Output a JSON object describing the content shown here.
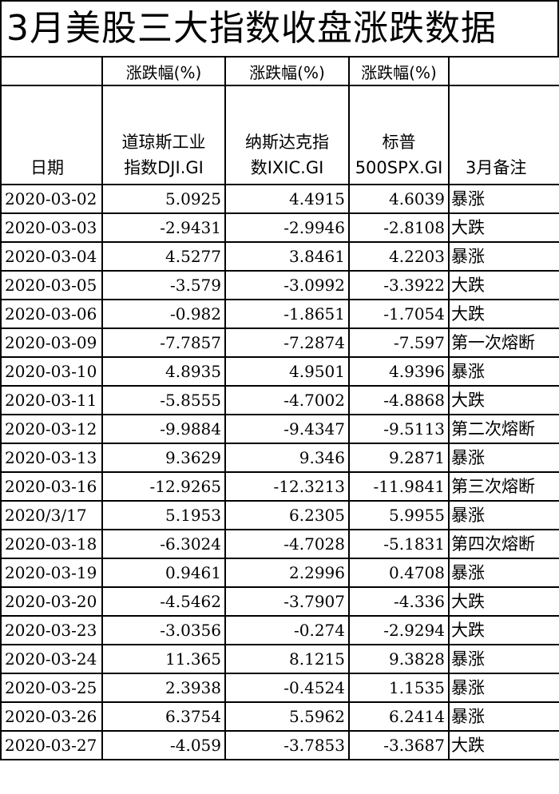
{
  "title": "3月美股三大指数收盘涨跌数据",
  "header": {
    "change_label": "涨跌幅(%)",
    "date": "日期",
    "dji": [
      "道琼斯工业",
      "指数DJI.GI"
    ],
    "ixic": [
      "纳斯达克指",
      "数IXIC.GI"
    ],
    "spx": [
      "标普",
      "500SPX.GI"
    ],
    "note": "3月备注"
  },
  "rows": [
    {
      "date": "2020-03-02",
      "dji": "5.0925",
      "ixic": "4.4915",
      "spx": "4.6039",
      "note": "暴涨"
    },
    {
      "date": "2020-03-03",
      "dji": "-2.9431",
      "ixic": "-2.9946",
      "spx": "-2.8108",
      "note": "大跌"
    },
    {
      "date": "2020-03-04",
      "dji": "4.5277",
      "ixic": "3.8461",
      "spx": "4.2203",
      "note": "暴涨"
    },
    {
      "date": "2020-03-05",
      "dji": "-3.579",
      "ixic": "-3.0992",
      "spx": "-3.3922",
      "note": "大跌"
    },
    {
      "date": "2020-03-06",
      "dji": "-0.982",
      "ixic": "-1.8651",
      "spx": "-1.7054",
      "note": "大跌"
    },
    {
      "date": "2020-03-09",
      "dji": "-7.7857",
      "ixic": "-7.2874",
      "spx": "-7.597",
      "note": "第一次熔断"
    },
    {
      "date": "2020-03-10",
      "dji": "4.8935",
      "ixic": "4.9501",
      "spx": "4.9396",
      "note": "暴涨"
    },
    {
      "date": "2020-03-11",
      "dji": "-5.8555",
      "ixic": "-4.7002",
      "spx": "-4.8868",
      "note": "大跌"
    },
    {
      "date": "2020-03-12",
      "dji": "-9.9884",
      "ixic": "-9.4347",
      "spx": "-9.5113",
      "note": "第二次熔断"
    },
    {
      "date": "2020-03-13",
      "dji": "9.3629",
      "ixic": "9.346",
      "spx": "9.2871",
      "note": "暴涨"
    },
    {
      "date": "2020-03-16",
      "dji": "-12.9265",
      "ixic": "-12.3213",
      "spx": "-11.9841",
      "note": "第三次熔断"
    },
    {
      "date": "2020/3/17",
      "dji": "5.1953",
      "ixic": "6.2305",
      "spx": "5.9955",
      "note": "暴涨"
    },
    {
      "date": "2020-03-18",
      "dji": "-6.3024",
      "ixic": "-4.7028",
      "spx": "-5.1831",
      "note": "第四次熔断"
    },
    {
      "date": "2020-03-19",
      "dji": "0.9461",
      "ixic": "2.2996",
      "spx": "0.4708",
      "note": "暴涨"
    },
    {
      "date": "2020-03-20",
      "dji": "-4.5462",
      "ixic": "-3.7907",
      "spx": "-4.336",
      "note": "大跌"
    },
    {
      "date": "2020-03-23",
      "dji": "-3.0356",
      "ixic": "-0.274",
      "spx": "-2.9294",
      "note": "大跌"
    },
    {
      "date": "2020-03-24",
      "dji": "11.365",
      "ixic": "8.1215",
      "spx": "9.3828",
      "note": "暴涨"
    },
    {
      "date": "2020-03-25",
      "dji": "2.3938",
      "ixic": "-0.4524",
      "spx": "1.1535",
      "note": "暴涨"
    },
    {
      "date": "2020-03-26",
      "dji": "6.3754",
      "ixic": "5.5962",
      "spx": "6.2414",
      "note": "暴涨"
    },
    {
      "date": "2020-03-27",
      "dji": "-4.059",
      "ixic": "-3.7853",
      "spx": "-3.3687",
      "note": "大跌"
    }
  ]
}
